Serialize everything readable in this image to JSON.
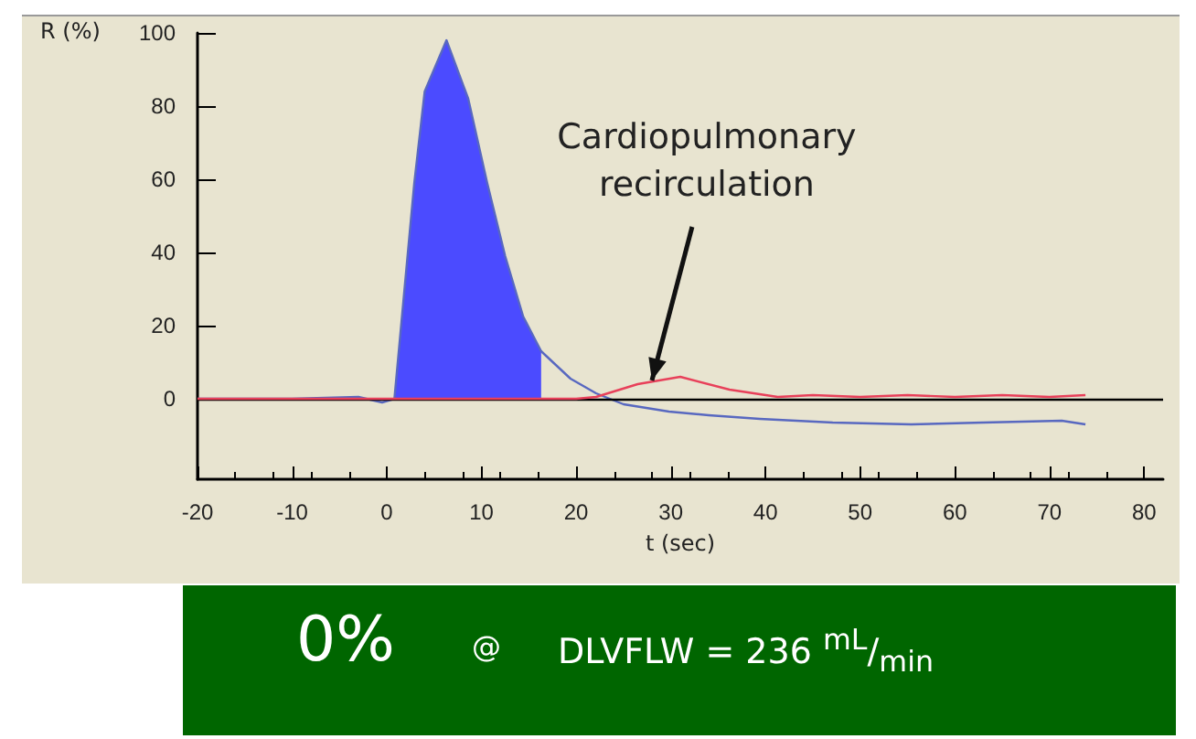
{
  "chart_data": {
    "type": "line",
    "xlabel": "t (sec)",
    "ylabel": "R (%)",
    "xlim": [
      -20,
      82
    ],
    "xticks": [
      -20,
      -10,
      0,
      10,
      20,
      30,
      40,
      50,
      60,
      70,
      80
    ],
    "ylim": [
      -22,
      100
    ],
    "yticks": [
      0,
      20,
      40,
      60,
      80,
      100
    ],
    "grid": false,
    "marker": "none",
    "line_style": "solid",
    "series": [
      {
        "type": "area",
        "color": "#4b4bff",
        "x": [
          0.8,
          2.9,
          4,
          6.3,
          8.6,
          10.6,
          12.5,
          14.4,
          16.3
        ],
        "values": [
          0,
          59,
          84,
          98,
          82,
          59,
          39,
          22.5,
          13
        ]
      },
      {
        "color": "#5868c0",
        "x": [
          -20,
          -10,
          -3,
          -0.5,
          0.8,
          2.9,
          4,
          6.3,
          8.6,
          10.6,
          12.5,
          14.4,
          16.3,
          19.4,
          22.1,
          25,
          29.8,
          34,
          39.4,
          47.1,
          55.4,
          63,
          71.3,
          73.8
        ],
        "values": [
          0,
          0,
          0.5,
          -1,
          0,
          59,
          84,
          98,
          82,
          59,
          39,
          22.5,
          13,
          5.5,
          1.5,
          -1.5,
          -3.5,
          -4.5,
          -5.5,
          -6.5,
          -7,
          -6.5,
          -6,
          -7
        ]
      },
      {
        "type": "line",
        "color": "#e8405a",
        "x": [
          -20,
          -10,
          0,
          10,
          20,
          22.1,
          26.5,
          31,
          36.2,
          41.3,
          45,
          50,
          55,
          60,
          65,
          70,
          73.8
        ],
        "values": [
          0,
          0,
          0,
          0,
          0,
          0.5,
          4,
          6,
          2.5,
          0.5,
          1,
          0.5,
          1,
          0.5,
          1,
          0.5,
          1
        ]
      }
    ],
    "ref_lines": [
      {
        "axis": "y",
        "value": 0,
        "color": "#000000"
      }
    ],
    "annotations": [
      {
        "text": "Cardiopulmonary recirculation",
        "x": 28,
        "y": 5
      },
      "0%",
      "@",
      "DLVFLW = 236 $^{mL}$/$_{min}$"
    ]
  }
}
